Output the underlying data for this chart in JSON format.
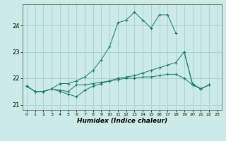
{
  "title": "",
  "xlabel": "Humidex (Indice chaleur)",
  "ylabel": "",
  "bg_color": "#cceae7",
  "grid_color": "#aad4d0",
  "line_color": "#1a7a6e",
  "xlim": [
    -0.5,
    23.5
  ],
  "ylim": [
    20.8,
    24.8
  ],
  "yticks": [
    21,
    22,
    23,
    24
  ],
  "xticks": [
    0,
    1,
    2,
    3,
    4,
    5,
    6,
    7,
    8,
    9,
    10,
    11,
    12,
    13,
    14,
    15,
    16,
    17,
    18,
    19,
    20,
    21,
    22,
    23
  ],
  "series": [
    [
      21.7,
      21.5,
      21.5,
      21.6,
      21.8,
      21.8,
      21.9,
      22.05,
      22.3,
      22.7,
      23.2,
      24.1,
      24.2,
      24.5,
      24.2,
      23.9,
      24.4,
      24.4,
      23.7,
      null,
      null,
      null,
      null,
      null
    ],
    [
      21.7,
      21.5,
      21.5,
      21.6,
      21.5,
      21.4,
      21.3,
      21.55,
      21.7,
      21.8,
      21.9,
      22.0,
      22.05,
      22.1,
      22.2,
      22.3,
      22.4,
      22.5,
      22.6,
      23.0,
      21.75,
      21.6,
      21.75,
      null
    ],
    [
      21.7,
      21.5,
      21.5,
      21.6,
      21.55,
      21.5,
      21.75,
      21.75,
      21.8,
      21.85,
      21.9,
      21.95,
      22.0,
      22.0,
      22.05,
      22.05,
      22.1,
      22.15,
      22.15,
      22.0,
      21.75,
      21.6,
      21.75,
      null
    ],
    [
      21.7,
      null,
      null,
      null,
      null,
      null,
      null,
      null,
      null,
      null,
      null,
      null,
      null,
      null,
      null,
      null,
      null,
      null,
      null,
      23.0,
      21.8,
      21.6,
      21.75,
      null
    ]
  ]
}
